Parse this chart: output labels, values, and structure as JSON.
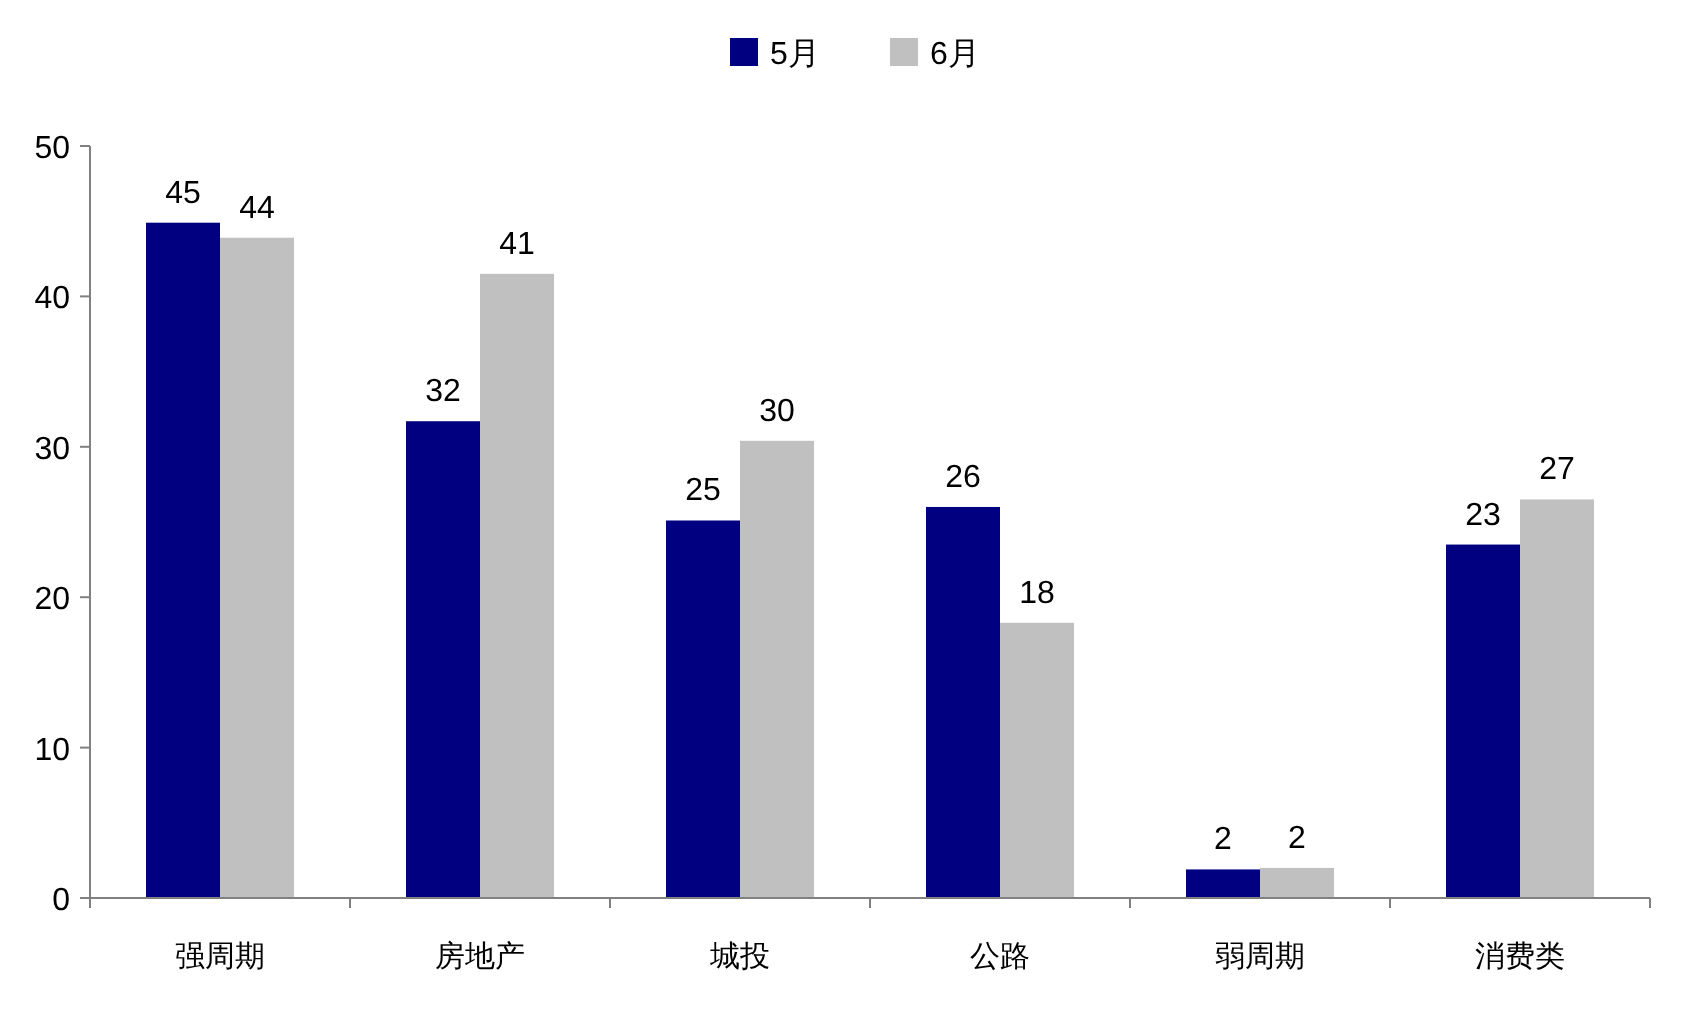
{
  "chart_data": {
    "type": "bar",
    "categories": [
      "强周期",
      "房地产",
      "城投",
      "公路",
      "弱周期",
      "消费类"
    ],
    "series": [
      {
        "name": "5月",
        "color": "#000080",
        "values": [
          44.9,
          31.7,
          25.1,
          26.0,
          1.9,
          23.5
        ],
        "value_labels": [
          "45",
          "32",
          "25",
          "26",
          "2",
          "23"
        ]
      },
      {
        "name": "6月",
        "color": "#c0c0c0",
        "values": [
          43.9,
          41.5,
          30.4,
          18.3,
          2.0,
          26.5
        ],
        "value_labels": [
          "44",
          "41",
          "30",
          "18",
          "2",
          "27"
        ]
      }
    ],
    "ylim": [
      0,
      50
    ],
    "yticks": [
      0,
      10,
      20,
      30,
      40,
      50
    ],
    "legend": "top",
    "grid": false
  }
}
